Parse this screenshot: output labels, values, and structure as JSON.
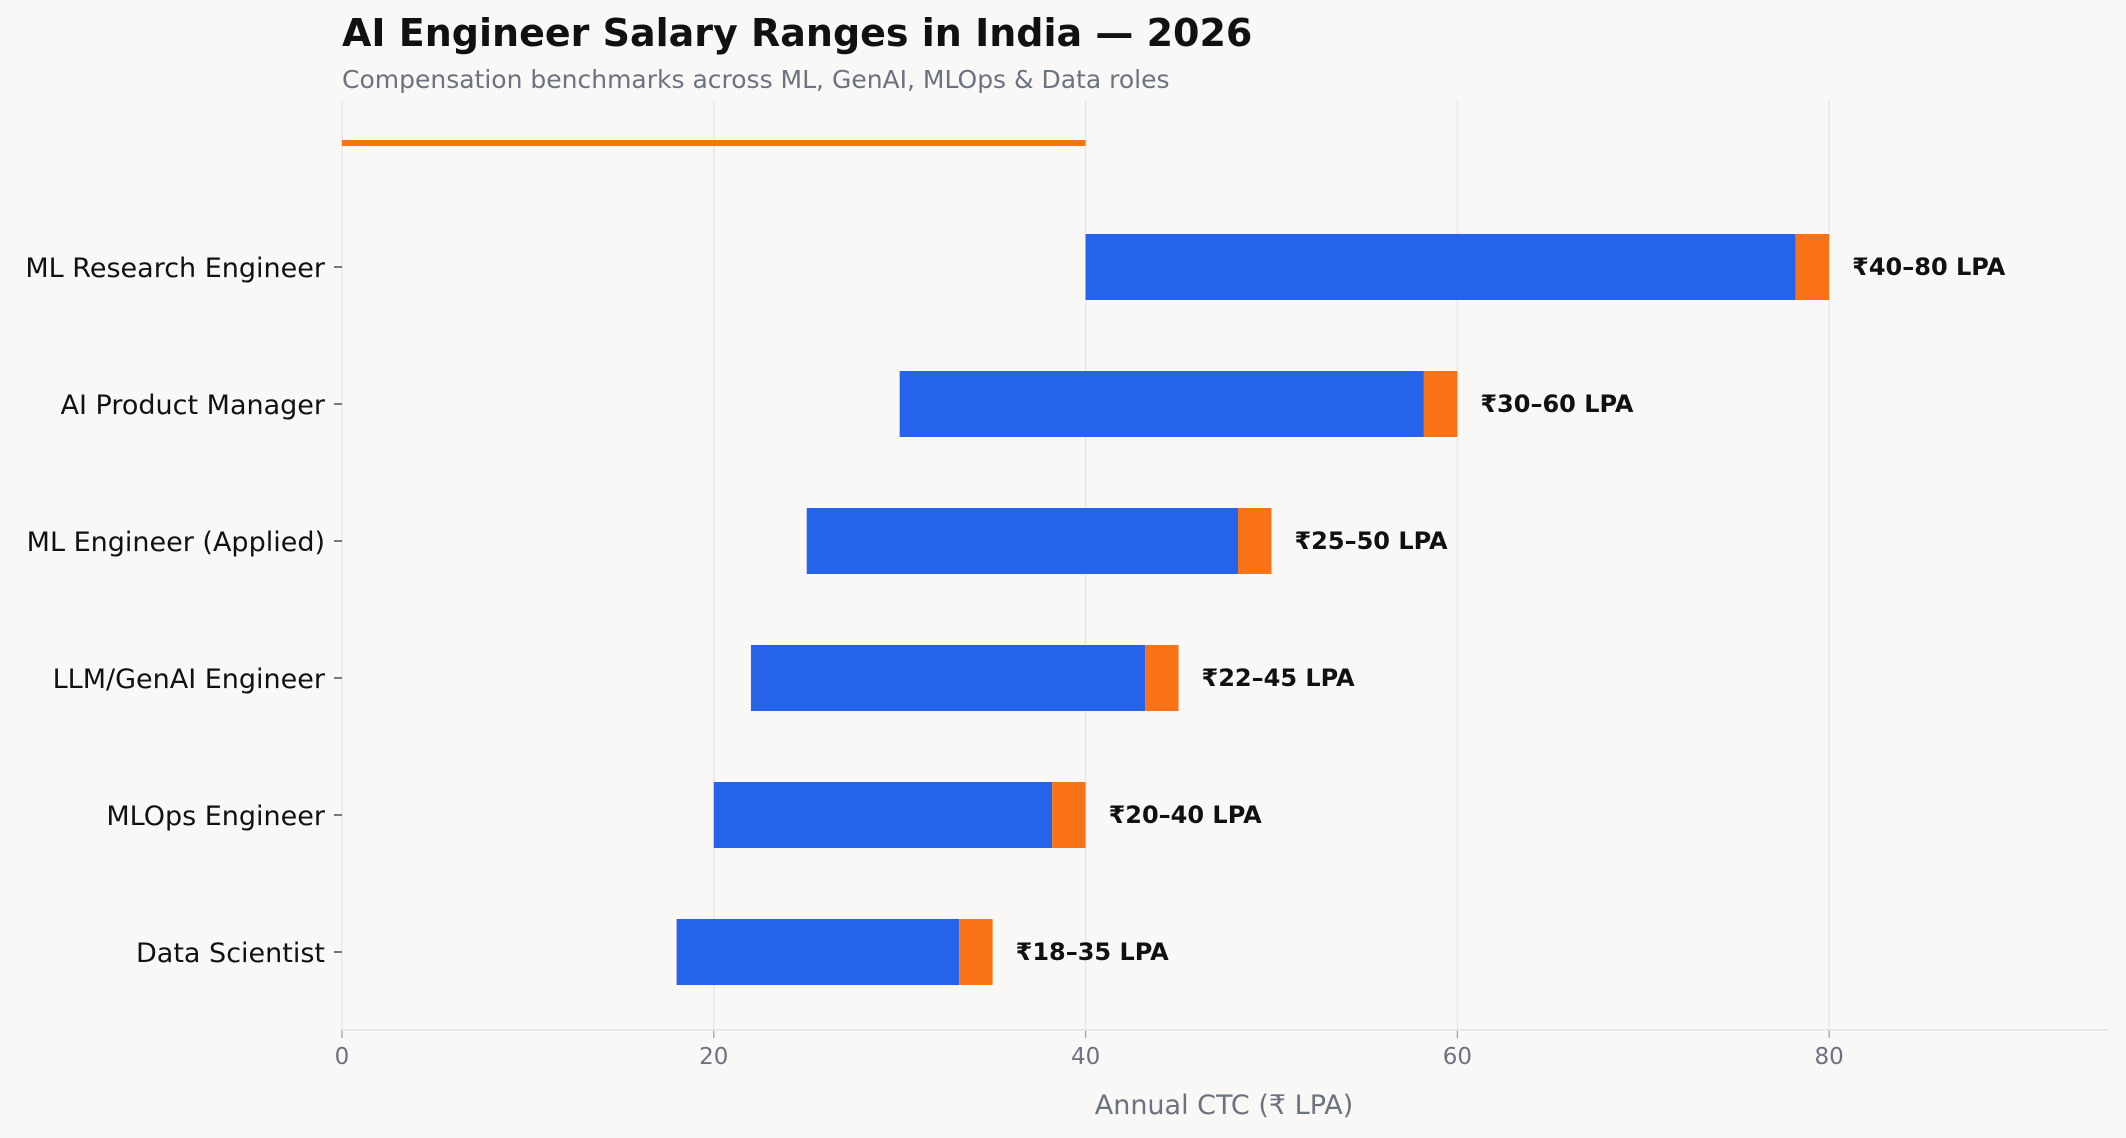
{
  "chart_data": {
    "type": "bar",
    "orientation": "horizontal",
    "title": "AI Engineer Salary Ranges in India — 2026",
    "subtitle": "Compensation benchmarks across ML, GenAI, MLOps & Data roles",
    "xlabel": "Annual CTC (₹ LPA)",
    "ylabel": "",
    "xlim": [
      0,
      95
    ],
    "xticks": [
      "0",
      "20",
      "40",
      "60",
      "80"
    ],
    "grid": "vertical",
    "accent_line": {
      "from": 0,
      "to": 40,
      "color": "#f97316"
    },
    "colors": {
      "range": "#2563eb",
      "cap": "#f97316",
      "grid": "#e6e6e6"
    },
    "categories": [
      "ML Research Engineer",
      "AI Product Manager",
      "ML Engineer (Applied)",
      "LLM/GenAI Engineer",
      "MLOps Engineer",
      "Data Scientist"
    ],
    "series": [
      {
        "values": [
          40,
          30,
          25,
          22,
          20,
          18
        ]
      },
      {
        "values": [
          80,
          60,
          50,
          45,
          40,
          35
        ]
      }
    ],
    "cap_width": 1.8,
    "bar_labels": [
      "₹40–80 LPA",
      "₹30–60 LPA",
      "₹25–50 LPA",
      "₹22–45 LPA",
      "₹20–40 LPA",
      "₹18–35 LPA"
    ]
  }
}
